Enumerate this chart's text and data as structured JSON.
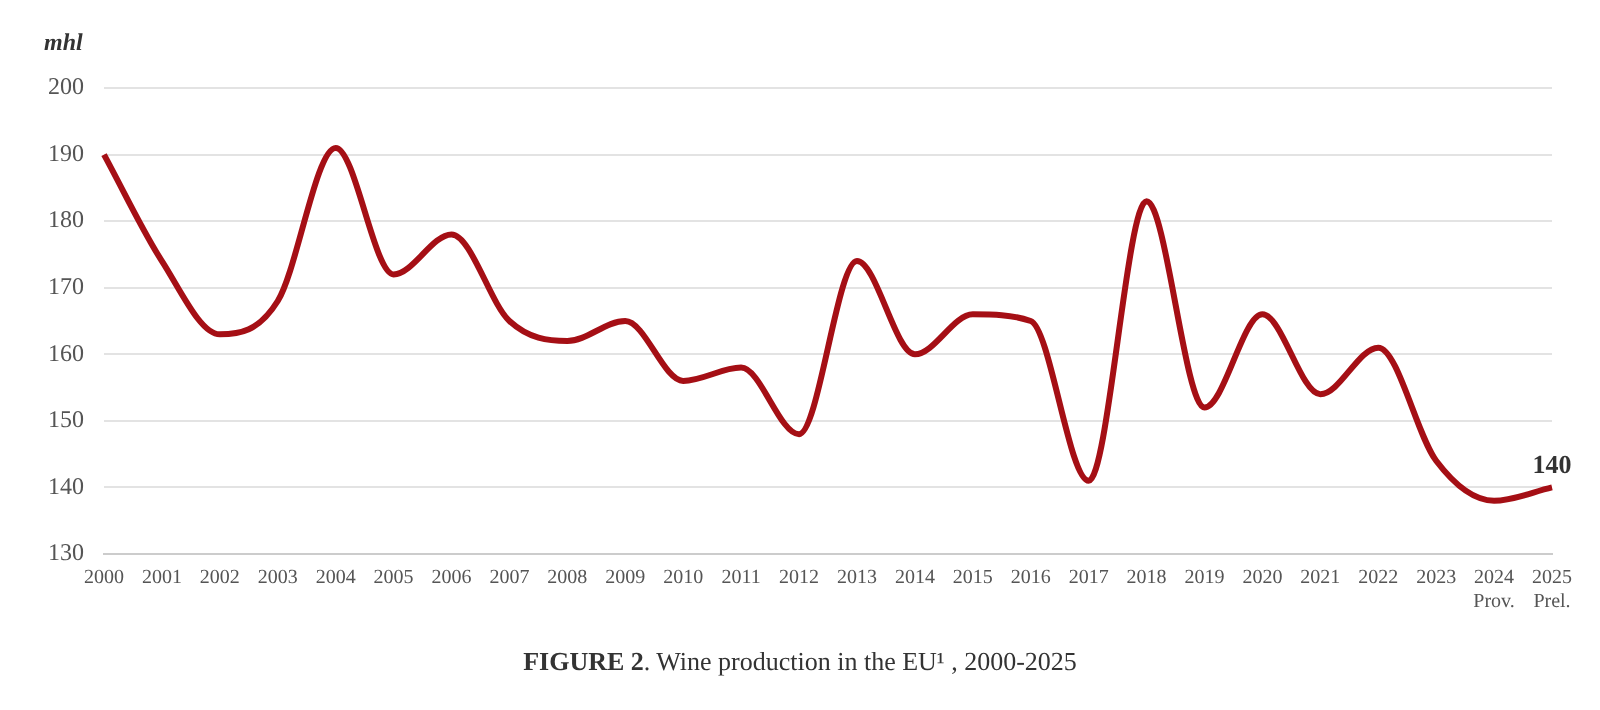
{
  "chart_data": {
    "type": "line",
    "title": "FIGURE 2. Wine production in the EU¹ , 2000-2025",
    "ylabel": "mhl",
    "categories": [
      "2000",
      "2001",
      "2002",
      "2003",
      "2004",
      "2005",
      "2006",
      "2007",
      "2008",
      "2009",
      "2010",
      "2011",
      "2012",
      "2013",
      "2014",
      "2015",
      "2016",
      "2017",
      "2018",
      "2019",
      "2020",
      "2021",
      "2022",
      "2023",
      "2024 Prov.",
      "2025 Prel."
    ],
    "series": [
      {
        "color": "#a50f15",
        "values": [
          190,
          174,
          163,
          168,
          191,
          172,
          178,
          165,
          162,
          165,
          156,
          158,
          148,
          174,
          160,
          166,
          165,
          141,
          183,
          152,
          166,
          154,
          161,
          144,
          138,
          140
        ],
        "value_labels": [
          null,
          null,
          null,
          null,
          null,
          null,
          null,
          null,
          null,
          null,
          null,
          null,
          null,
          null,
          null,
          null,
          null,
          null,
          null,
          null,
          null,
          null,
          null,
          null,
          null,
          "140"
        ]
      }
    ],
    "ylim": [
      130,
      200
    ],
    "yticks": [
      130,
      140,
      150,
      160,
      170,
      180,
      190,
      200
    ],
    "grid": "y",
    "legend": false,
    "marker": "none",
    "line_style": "solid"
  }
}
